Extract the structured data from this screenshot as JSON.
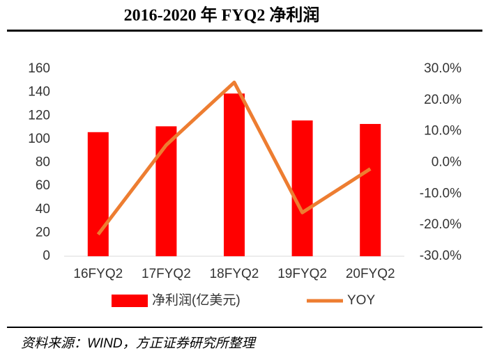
{
  "chart_data": {
    "type": "bar-line",
    "title": "2016-2020 年 FYQ2 净利润",
    "source": "资料来源：WIND，方正证券研究所整理",
    "categories": [
      "16FYQ2",
      "17FYQ2",
      "18FYQ2",
      "19FYQ2",
      "20FYQ2"
    ],
    "series": [
      {
        "name": "净利润(亿美元)",
        "type": "bar",
        "color": "#ff0000",
        "values": [
          106,
          111,
          139,
          116,
          113
        ]
      },
      {
        "name": "YOY",
        "type": "line",
        "axis": "y2",
        "color": "#ed7d31",
        "values": [
          -23,
          5.6,
          25.7,
          -16,
          -2
        ]
      }
    ],
    "ylim": [
      0,
      160
    ],
    "yticks": [
      0,
      20,
      40,
      60,
      80,
      100,
      120,
      140,
      160
    ],
    "y2lim": [
      -30,
      30
    ],
    "y2ticks": [
      {
        "value": -30,
        "label": "-30.0%"
      },
      {
        "value": -20,
        "label": "-20.0%"
      },
      {
        "value": -10,
        "label": "-10.0%"
      },
      {
        "value": 0,
        "label": "0.0%"
      },
      {
        "value": 10,
        "label": "10.0%"
      },
      {
        "value": 20,
        "label": "20.0%"
      },
      {
        "value": 30,
        "label": "30.0%"
      }
    ],
    "legend": "bottom"
  }
}
